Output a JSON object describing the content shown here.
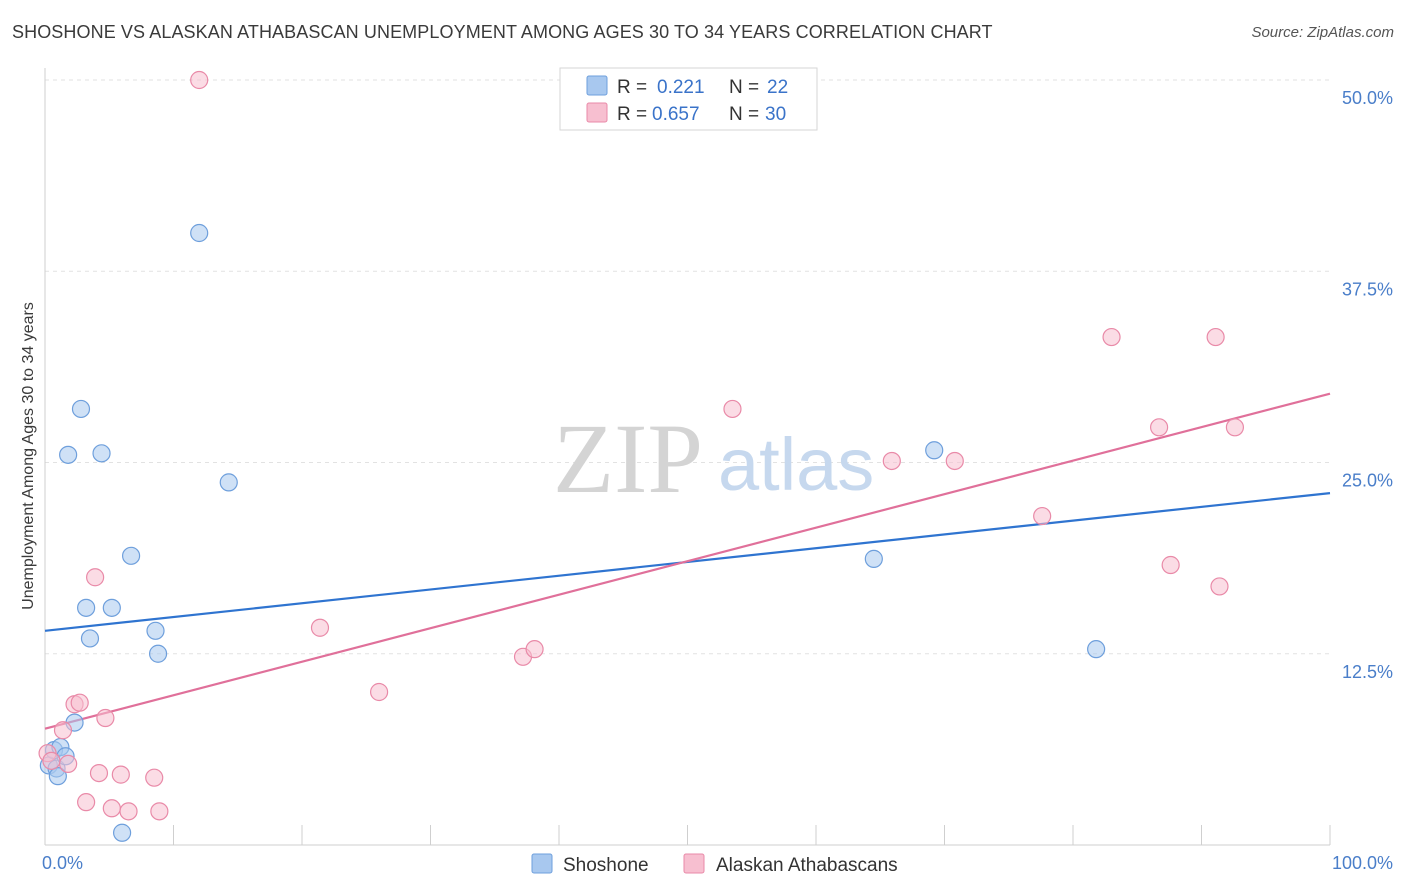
{
  "header": {
    "title": "SHOSHONE VS ALASKAN ATHABASCAN UNEMPLOYMENT AMONG AGES 30 TO 34 YEARS CORRELATION CHART",
    "source": "Source: ZipAtlas.com"
  },
  "watermark": {
    "zip": "ZIP",
    "atlas": "atlas"
  },
  "legend": {
    "r_label": "R =",
    "n_label": "N =",
    "entries": [
      {
        "r": "0.221",
        "n": "22"
      },
      {
        "r": "0.657",
        "n": "30"
      }
    ]
  },
  "chart_data": {
    "type": "scatter",
    "title": "SHOSHONE VS ALASKAN ATHABASCAN UNEMPLOYMENT AMONG AGES 30 TO 34 YEARS CORRELATION CHART",
    "xlabel": "",
    "ylabel": "Unemployment Among Ages 30 to 34 years",
    "xlim": [
      0,
      100
    ],
    "ylim": [
      0,
      50
    ],
    "x_tick_labels": [
      {
        "value": 0,
        "label": "0.0%"
      },
      {
        "value": 100,
        "label": "100.0%"
      }
    ],
    "y_tick_labels": [
      {
        "value": 12.5,
        "label": "12.5%"
      },
      {
        "value": 25,
        "label": "25.0%"
      },
      {
        "value": 37.5,
        "label": "37.5%"
      },
      {
        "value": 50,
        "label": "50.0%"
      }
    ],
    "grid": true,
    "series": [
      {
        "name": "Shoshone",
        "color": "#a8c8ef",
        "stroke": "#6e9fdc",
        "line_color": "#2f74d0",
        "r": 0.221,
        "n": 22,
        "trend": {
          "x0": 0,
          "y0": 14.0,
          "x1": 100,
          "y1": 23.0
        },
        "points": [
          [
            0.3,
            5.2
          ],
          [
            0.7,
            6.2
          ],
          [
            0.9,
            5.0
          ],
          [
            1.0,
            4.5
          ],
          [
            1.2,
            6.4
          ],
          [
            1.6,
            5.8
          ],
          [
            1.8,
            25.5
          ],
          [
            2.3,
            8.0
          ],
          [
            2.8,
            28.5
          ],
          [
            3.2,
            15.5
          ],
          [
            3.5,
            13.5
          ],
          [
            4.4,
            25.6
          ],
          [
            5.2,
            15.5
          ],
          [
            6.0,
            0.8
          ],
          [
            6.7,
            18.9
          ],
          [
            8.6,
            14.0
          ],
          [
            8.8,
            12.5
          ],
          [
            12.0,
            40.0
          ],
          [
            14.3,
            23.7
          ],
          [
            64.5,
            18.7
          ],
          [
            69.2,
            25.8
          ],
          [
            81.8,
            12.8
          ]
        ]
      },
      {
        "name": "Alaskan Athabascans",
        "color": "#f7bfd0",
        "stroke": "#e98aa8",
        "line_color": "#e0709a",
        "r": 0.657,
        "n": 30,
        "trend": {
          "x0": 0,
          "y0": 7.6,
          "x1": 100,
          "y1": 29.5
        },
        "points": [
          [
            0.2,
            6.0
          ],
          [
            0.5,
            5.5
          ],
          [
            1.4,
            7.5
          ],
          [
            1.8,
            5.3
          ],
          [
            2.3,
            9.2
          ],
          [
            2.7,
            9.3
          ],
          [
            3.2,
            2.8
          ],
          [
            3.9,
            17.5
          ],
          [
            4.2,
            4.7
          ],
          [
            4.7,
            8.3
          ],
          [
            5.2,
            2.4
          ],
          [
            5.9,
            4.6
          ],
          [
            6.5,
            2.2
          ],
          [
            8.5,
            4.4
          ],
          [
            8.9,
            2.2
          ],
          [
            12.0,
            50.0
          ],
          [
            21.4,
            14.2
          ],
          [
            26.0,
            10.0
          ],
          [
            37.2,
            12.3
          ],
          [
            38.1,
            12.8
          ],
          [
            53.5,
            28.5
          ],
          [
            65.9,
            25.1
          ],
          [
            70.8,
            25.1
          ],
          [
            77.6,
            21.5
          ],
          [
            83.0,
            33.2
          ],
          [
            86.7,
            27.3
          ],
          [
            87.6,
            18.3
          ],
          [
            91.1,
            33.2
          ],
          [
            91.4,
            16.9
          ],
          [
            92.6,
            27.3
          ]
        ]
      }
    ]
  }
}
